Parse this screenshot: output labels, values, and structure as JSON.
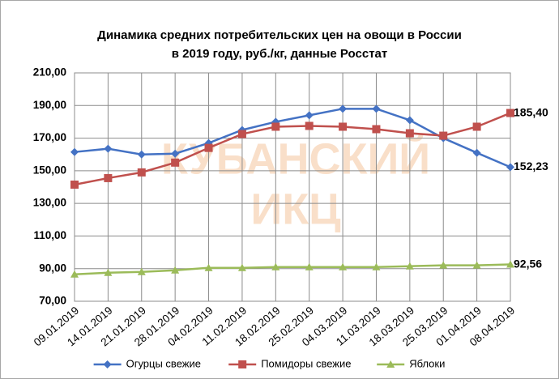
{
  "chart_data": {
    "type": "line",
    "title": [
      "Динамика средних потребительских цен на овощи в России",
      "в 2019 году, руб./кг, данные Росстат"
    ],
    "watermark": [
      "КУБАНСКИЙ",
      "ИКЦ"
    ],
    "categories": [
      "09.01.2019",
      "14.01.2019",
      "21.01.2019",
      "28.01.2019",
      "04.02.2019",
      "11.02.2019",
      "18.02.2019",
      "25.02.2019",
      "04.03.2019",
      "11.03.2019",
      "18.03.2019",
      "25.03.2019",
      "01.04.2019",
      "08.04.2019"
    ],
    "series": [
      {
        "name": "Огурцы свежие",
        "color": "#4472c4",
        "marker": "diamond",
        "values": [
          161.5,
          163.5,
          160,
          160.5,
          167,
          175,
          180,
          184,
          188,
          188,
          181,
          170,
          161,
          152.23
        ],
        "value_labels": [
          null,
          null,
          null,
          null,
          null,
          null,
          null,
          null,
          null,
          null,
          null,
          null,
          null,
          "152,23"
        ]
      },
      {
        "name": "Помидоры свежие",
        "color": "#c0504d",
        "marker": "square",
        "values": [
          141.5,
          145.5,
          149,
          155,
          164,
          172.5,
          177,
          177.5,
          177,
          175.5,
          173,
          171.5,
          177,
          185.4
        ],
        "value_labels": [
          null,
          null,
          null,
          null,
          null,
          null,
          null,
          null,
          null,
          null,
          null,
          null,
          null,
          "185,40"
        ]
      },
      {
        "name": "Яблоки",
        "color": "#9bbb59",
        "marker": "triangle",
        "values": [
          86.5,
          87.5,
          88,
          89,
          90.5,
          90.5,
          91,
          91,
          91,
          91,
          91.5,
          92,
          92,
          92.56
        ],
        "value_labels": [
          null,
          null,
          null,
          null,
          null,
          null,
          null,
          null,
          null,
          null,
          null,
          null,
          null,
          "92,56"
        ]
      }
    ],
    "ylim": [
      70,
      210
    ],
    "yticks": [
      {
        "value": 70,
        "label": "70,00"
      },
      {
        "value": 90,
        "label": "90,00"
      },
      {
        "value": 110,
        "label": "110,00"
      },
      {
        "value": 130,
        "label": "130,00"
      },
      {
        "value": 150,
        "label": "150,00"
      },
      {
        "value": 170,
        "label": "170,00"
      },
      {
        "value": 190,
        "label": "190,00"
      },
      {
        "value": 210,
        "label": "210,00"
      }
    ],
    "grid": true,
    "legend": "bottom"
  }
}
